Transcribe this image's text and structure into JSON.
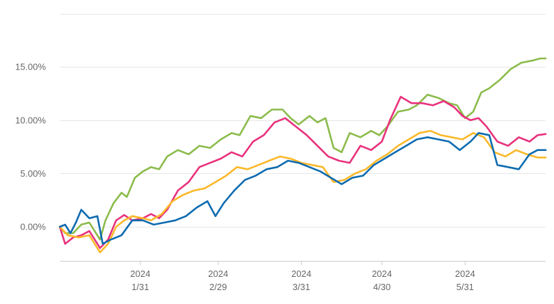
{
  "chart_data": {
    "type": "line",
    "title": "",
    "xlabel": "",
    "ylabel": "",
    "x_range": [
      "2024-01-01",
      "2024-06-30"
    ],
    "ylim": [
      -3.2,
      20.5
    ],
    "y_gridlines": [
      0,
      5,
      10,
      15,
      20
    ],
    "grid": true,
    "legend": "none",
    "y_ticks": [
      {
        "value": 0,
        "label": "0.00%"
      },
      {
        "value": 5,
        "label": "5.00%"
      },
      {
        "value": 10,
        "label": "10.00%"
      },
      {
        "value": 15,
        "label": "15.00%"
      }
    ],
    "x_ticks": [
      {
        "date": "2024-01-31",
        "year": "2024",
        "label": "1/31"
      },
      {
        "date": "2024-02-29",
        "year": "2024",
        "label": "2/29"
      },
      {
        "date": "2024-03-31",
        "year": "2024",
        "label": "3/31"
      },
      {
        "date": "2024-04-30",
        "year": "2024",
        "label": "4/30"
      },
      {
        "date": "2024-05-31",
        "year": "2024",
        "label": "5/31"
      }
    ],
    "series": [
      {
        "color": "#8bbb4b",
        "points": [
          [
            "2024-01-01",
            0.0
          ],
          [
            "2024-01-03",
            -0.6
          ],
          [
            "2024-01-06",
            -0.6
          ],
          [
            "2024-01-09",
            0.2
          ],
          [
            "2024-01-12",
            0.4
          ],
          [
            "2024-01-16",
            -1.2
          ],
          [
            "2024-01-18",
            0.6
          ],
          [
            "2024-01-21",
            2.2
          ],
          [
            "2024-01-24",
            3.2
          ],
          [
            "2024-01-26",
            2.8
          ],
          [
            "2024-01-29",
            4.6
          ],
          [
            "2024-02-01",
            5.2
          ],
          [
            "2024-02-04",
            5.6
          ],
          [
            "2024-02-07",
            5.4
          ],
          [
            "2024-02-10",
            6.6
          ],
          [
            "2024-02-14",
            7.2
          ],
          [
            "2024-02-18",
            6.8
          ],
          [
            "2024-02-22",
            7.6
          ],
          [
            "2024-02-26",
            7.4
          ],
          [
            "2024-03-01",
            8.2
          ],
          [
            "2024-03-05",
            8.8
          ],
          [
            "2024-03-08",
            8.6
          ],
          [
            "2024-03-12",
            10.4
          ],
          [
            "2024-03-16",
            10.2
          ],
          [
            "2024-03-20",
            11.0
          ],
          [
            "2024-03-24",
            11.0
          ],
          [
            "2024-03-27",
            10.2
          ],
          [
            "2024-03-30",
            9.6
          ],
          [
            "2024-04-03",
            10.4
          ],
          [
            "2024-04-06",
            9.8
          ],
          [
            "2024-04-09",
            10.2
          ],
          [
            "2024-04-12",
            7.4
          ],
          [
            "2024-04-15",
            7.0
          ],
          [
            "2024-04-18",
            8.8
          ],
          [
            "2024-04-22",
            8.4
          ],
          [
            "2024-04-26",
            9.0
          ],
          [
            "2024-04-29",
            8.6
          ],
          [
            "2024-05-02",
            9.4
          ],
          [
            "2024-05-06",
            10.8
          ],
          [
            "2024-05-10",
            11.0
          ],
          [
            "2024-05-13",
            11.4
          ],
          [
            "2024-05-17",
            12.4
          ],
          [
            "2024-05-21",
            12.1
          ],
          [
            "2024-05-25",
            11.6
          ],
          [
            "2024-05-28",
            11.4
          ],
          [
            "2024-05-31",
            10.2
          ],
          [
            "2024-06-03",
            10.8
          ],
          [
            "2024-06-06",
            12.6
          ],
          [
            "2024-06-09",
            13.0
          ],
          [
            "2024-06-13",
            13.8
          ],
          [
            "2024-06-17",
            14.8
          ],
          [
            "2024-06-21",
            15.4
          ],
          [
            "2024-06-25",
            15.6
          ],
          [
            "2024-06-28",
            15.8
          ],
          [
            "2024-06-30",
            15.8
          ]
        ]
      },
      {
        "color": "#e8317c",
        "points": [
          [
            "2024-01-01",
            0.0
          ],
          [
            "2024-01-03",
            -1.6
          ],
          [
            "2024-01-06",
            -1.0
          ],
          [
            "2024-01-09",
            -0.8
          ],
          [
            "2024-01-12",
            -0.4
          ],
          [
            "2024-01-16",
            -2.0
          ],
          [
            "2024-01-19",
            -1.2
          ],
          [
            "2024-01-22",
            0.6
          ],
          [
            "2024-01-25",
            1.1
          ],
          [
            "2024-01-28",
            0.6
          ],
          [
            "2024-02-01",
            0.8
          ],
          [
            "2024-02-04",
            1.2
          ],
          [
            "2024-02-07",
            0.8
          ],
          [
            "2024-02-10",
            1.6
          ],
          [
            "2024-02-14",
            3.4
          ],
          [
            "2024-02-18",
            4.2
          ],
          [
            "2024-02-22",
            5.6
          ],
          [
            "2024-02-26",
            6.0
          ],
          [
            "2024-03-01",
            6.4
          ],
          [
            "2024-03-05",
            7.0
          ],
          [
            "2024-03-09",
            6.6
          ],
          [
            "2024-03-13",
            8.0
          ],
          [
            "2024-03-17",
            8.6
          ],
          [
            "2024-03-21",
            9.8
          ],
          [
            "2024-03-25",
            10.2
          ],
          [
            "2024-03-29",
            9.4
          ],
          [
            "2024-04-02",
            8.6
          ],
          [
            "2024-04-06",
            7.6
          ],
          [
            "2024-04-10",
            6.6
          ],
          [
            "2024-04-14",
            6.2
          ],
          [
            "2024-04-18",
            6.0
          ],
          [
            "2024-04-22",
            7.6
          ],
          [
            "2024-04-26",
            7.2
          ],
          [
            "2024-04-30",
            8.0
          ],
          [
            "2024-05-03",
            10.0
          ],
          [
            "2024-05-07",
            12.2
          ],
          [
            "2024-05-11",
            11.6
          ],
          [
            "2024-05-15",
            11.6
          ],
          [
            "2024-05-19",
            11.4
          ],
          [
            "2024-05-23",
            11.8
          ],
          [
            "2024-05-27",
            11.2
          ],
          [
            "2024-05-30",
            10.4
          ],
          [
            "2024-06-02",
            10.0
          ],
          [
            "2024-06-05",
            10.2
          ],
          [
            "2024-06-08",
            9.4
          ],
          [
            "2024-06-12",
            8.0
          ],
          [
            "2024-06-16",
            7.6
          ],
          [
            "2024-06-20",
            8.4
          ],
          [
            "2024-06-24",
            8.0
          ],
          [
            "2024-06-27",
            8.6
          ],
          [
            "2024-06-30",
            8.7
          ]
        ]
      },
      {
        "color": "#fbb829",
        "points": [
          [
            "2024-01-01",
            0.0
          ],
          [
            "2024-01-04",
            -0.8
          ],
          [
            "2024-01-08",
            -1.0
          ],
          [
            "2024-01-12",
            -0.8
          ],
          [
            "2024-01-16",
            -2.4
          ],
          [
            "2024-01-19",
            -1.6
          ],
          [
            "2024-01-22",
            0.0
          ],
          [
            "2024-01-25",
            0.6
          ],
          [
            "2024-01-28",
            1.0
          ],
          [
            "2024-02-01",
            0.8
          ],
          [
            "2024-02-04",
            0.6
          ],
          [
            "2024-02-08",
            1.2
          ],
          [
            "2024-02-12",
            2.4
          ],
          [
            "2024-02-16",
            3.0
          ],
          [
            "2024-02-20",
            3.4
          ],
          [
            "2024-02-24",
            3.6
          ],
          [
            "2024-02-28",
            4.2
          ],
          [
            "2024-03-03",
            4.8
          ],
          [
            "2024-03-07",
            5.6
          ],
          [
            "2024-03-11",
            5.4
          ],
          [
            "2024-03-15",
            5.8
          ],
          [
            "2024-03-19",
            6.2
          ],
          [
            "2024-03-23",
            6.6
          ],
          [
            "2024-03-27",
            6.4
          ],
          [
            "2024-03-31",
            6.0
          ],
          [
            "2024-04-04",
            5.8
          ],
          [
            "2024-04-08",
            5.6
          ],
          [
            "2024-04-12",
            4.2
          ],
          [
            "2024-04-16",
            4.4
          ],
          [
            "2024-04-20",
            5.0
          ],
          [
            "2024-04-24",
            5.4
          ],
          [
            "2024-04-28",
            6.2
          ],
          [
            "2024-05-02",
            6.8
          ],
          [
            "2024-05-06",
            7.6
          ],
          [
            "2024-05-10",
            8.2
          ],
          [
            "2024-05-14",
            8.8
          ],
          [
            "2024-05-18",
            9.0
          ],
          [
            "2024-05-22",
            8.6
          ],
          [
            "2024-05-26",
            8.4
          ],
          [
            "2024-05-30",
            8.2
          ],
          [
            "2024-06-03",
            8.8
          ],
          [
            "2024-06-07",
            8.4
          ],
          [
            "2024-06-11",
            7.0
          ],
          [
            "2024-06-15",
            6.6
          ],
          [
            "2024-06-19",
            7.2
          ],
          [
            "2024-06-23",
            6.8
          ],
          [
            "2024-06-27",
            6.5
          ],
          [
            "2024-06-30",
            6.5
          ]
        ]
      },
      {
        "color": "#0d6bb0",
        "points": [
          [
            "2024-01-01",
            0.0
          ],
          [
            "2024-01-03",
            0.2
          ],
          [
            "2024-01-05",
            -0.6
          ],
          [
            "2024-01-07",
            0.4
          ],
          [
            "2024-01-09",
            1.6
          ],
          [
            "2024-01-12",
            0.8
          ],
          [
            "2024-01-15",
            1.0
          ],
          [
            "2024-01-17",
            -1.6
          ],
          [
            "2024-01-20",
            -1.2
          ],
          [
            "2024-01-24",
            -0.8
          ],
          [
            "2024-01-28",
            0.6
          ],
          [
            "2024-02-01",
            0.6
          ],
          [
            "2024-02-05",
            0.2
          ],
          [
            "2024-02-09",
            0.4
          ],
          [
            "2024-02-13",
            0.6
          ],
          [
            "2024-02-17",
            1.0
          ],
          [
            "2024-02-21",
            1.8
          ],
          [
            "2024-02-25",
            2.4
          ],
          [
            "2024-02-28",
            1.0
          ],
          [
            "2024-03-02",
            2.2
          ],
          [
            "2024-03-06",
            3.4
          ],
          [
            "2024-03-10",
            4.4
          ],
          [
            "2024-03-14",
            4.8
          ],
          [
            "2024-03-18",
            5.4
          ],
          [
            "2024-03-22",
            5.6
          ],
          [
            "2024-03-26",
            6.2
          ],
          [
            "2024-03-30",
            6.0
          ],
          [
            "2024-04-03",
            5.6
          ],
          [
            "2024-04-07",
            5.2
          ],
          [
            "2024-04-11",
            4.6
          ],
          [
            "2024-04-15",
            4.0
          ],
          [
            "2024-04-19",
            4.6
          ],
          [
            "2024-04-23",
            4.8
          ],
          [
            "2024-04-27",
            5.8
          ],
          [
            "2024-05-01",
            6.4
          ],
          [
            "2024-05-05",
            7.0
          ],
          [
            "2024-05-09",
            7.6
          ],
          [
            "2024-05-13",
            8.2
          ],
          [
            "2024-05-17",
            8.4
          ],
          [
            "2024-05-21",
            8.2
          ],
          [
            "2024-05-25",
            8.0
          ],
          [
            "2024-05-29",
            7.2
          ],
          [
            "2024-06-02",
            8.0
          ],
          [
            "2024-06-05",
            8.8
          ],
          [
            "2024-06-09",
            8.6
          ],
          [
            "2024-06-12",
            5.8
          ],
          [
            "2024-06-16",
            5.6
          ],
          [
            "2024-06-20",
            5.4
          ],
          [
            "2024-06-24",
            6.8
          ],
          [
            "2024-06-27",
            7.2
          ],
          [
            "2024-06-30",
            7.2
          ]
        ]
      }
    ]
  }
}
